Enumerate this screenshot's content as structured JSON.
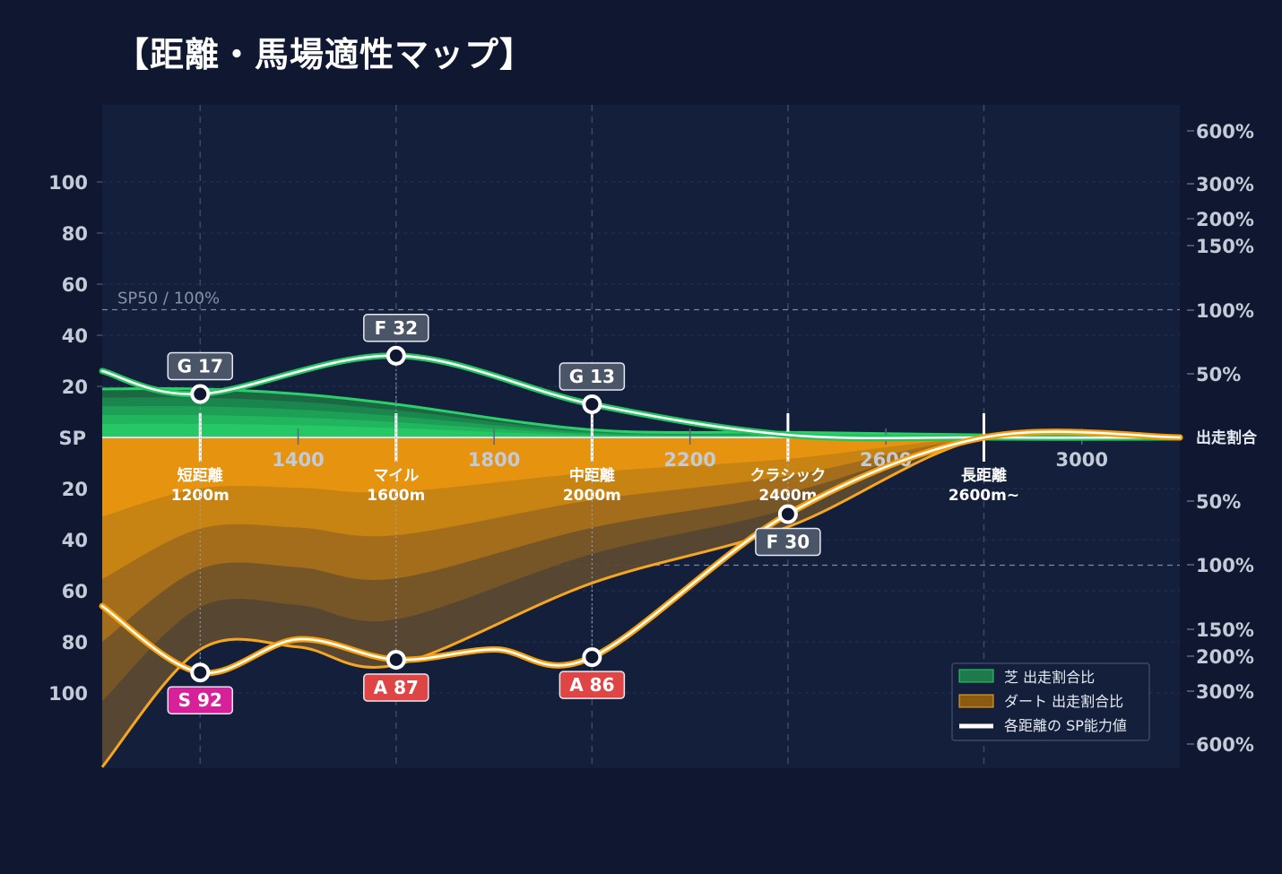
{
  "title": "【距離・馬場適性マップ】",
  "chart_data": {
    "type": "area",
    "x_ticks": [
      1400,
      1800,
      2200,
      2600,
      3000
    ],
    "x_range": [
      1000,
      3200
    ],
    "sp_ticks_upper": [
      100,
      80,
      60,
      40,
      20
    ],
    "sp_ticks_lower": [
      20,
      40,
      60,
      80,
      100
    ],
    "center_label": "SP",
    "right_center_label": "出走割合",
    "pct_ticks_upper": [
      "600%",
      "300%",
      "200%",
      "150%",
      "100%",
      "50%"
    ],
    "pct_ticks_lower": [
      "50%",
      "100%",
      "150%",
      "200%",
      "300%",
      "600%"
    ],
    "reference_label_upper": "SP50 / 100%",
    "reference_label_lower": "SP50 / 100%",
    "categories": [
      {
        "name": "短距離",
        "dist": "1200m",
        "x": 1200
      },
      {
        "name": "マイル",
        "dist": "1600m",
        "x": 1600
      },
      {
        "name": "中距離",
        "dist": "2000m",
        "x": 2000
      },
      {
        "name": "クラシック",
        "dist": "2400m",
        "x": 2400
      },
      {
        "name": "長距離",
        "dist": "2600m~",
        "x": 2800
      }
    ],
    "series": [
      {
        "name": "芝",
        "color": "#22c55e",
        "sp_points": [
          {
            "x": 1200,
            "sp": 17,
            "label": "G 17"
          },
          {
            "x": 1600,
            "sp": 32,
            "label": "F 32"
          },
          {
            "x": 2000,
            "sp": 13,
            "label": "G 13"
          }
        ],
        "sp_curve": [
          [
            1000,
            26
          ],
          [
            1200,
            17
          ],
          [
            1600,
            32
          ],
          [
            2000,
            13
          ],
          [
            2400,
            1
          ],
          [
            2800,
            0
          ],
          [
            3200,
            0
          ]
        ],
        "ratio_curve": [
          [
            1000,
            19
          ],
          [
            1200,
            19
          ],
          [
            1400,
            17
          ],
          [
            1600,
            13
          ],
          [
            2000,
            3
          ],
          [
            2400,
            2
          ],
          [
            2800,
            1
          ],
          [
            3200,
            0
          ]
        ]
      },
      {
        "name": "ダート",
        "color": "#f59e0b",
        "sp_points": [
          {
            "x": 1200,
            "sp": 92,
            "label": "S 92"
          },
          {
            "x": 1600,
            "sp": 87,
            "label": "A 87"
          },
          {
            "x": 2000,
            "sp": 86,
            "label": "A 86"
          },
          {
            "x": 2400,
            "sp": 30,
            "label": "F 30"
          }
        ],
        "sp_curve": [
          [
            1000,
            66
          ],
          [
            1200,
            92
          ],
          [
            1400,
            79
          ],
          [
            1600,
            87
          ],
          [
            1800,
            83
          ],
          [
            2000,
            86
          ],
          [
            2400,
            30
          ],
          [
            2800,
            0
          ],
          [
            3200,
            0
          ]
        ],
        "ratio_curve": [
          [
            1000,
            129
          ],
          [
            1200,
            83
          ],
          [
            1400,
            82
          ],
          [
            1600,
            89
          ],
          [
            2000,
            57
          ],
          [
            2400,
            35
          ],
          [
            2800,
            0
          ],
          [
            3200,
            0
          ]
        ]
      }
    ],
    "badge_colors": {
      "S": "#d6219a",
      "A": "#e04545",
      "F": "#4a5568",
      "G": "#4a5568"
    },
    "legend": {
      "position": "bottom-right",
      "items": [
        {
          "label": "芝 出走割合比",
          "color": "#1e7a4a"
        },
        {
          "label": "ダート 出走割合比",
          "color": "#8a5c12"
        },
        {
          "label": "各距離の SP能力値",
          "color": "#ffffff"
        }
      ]
    }
  }
}
